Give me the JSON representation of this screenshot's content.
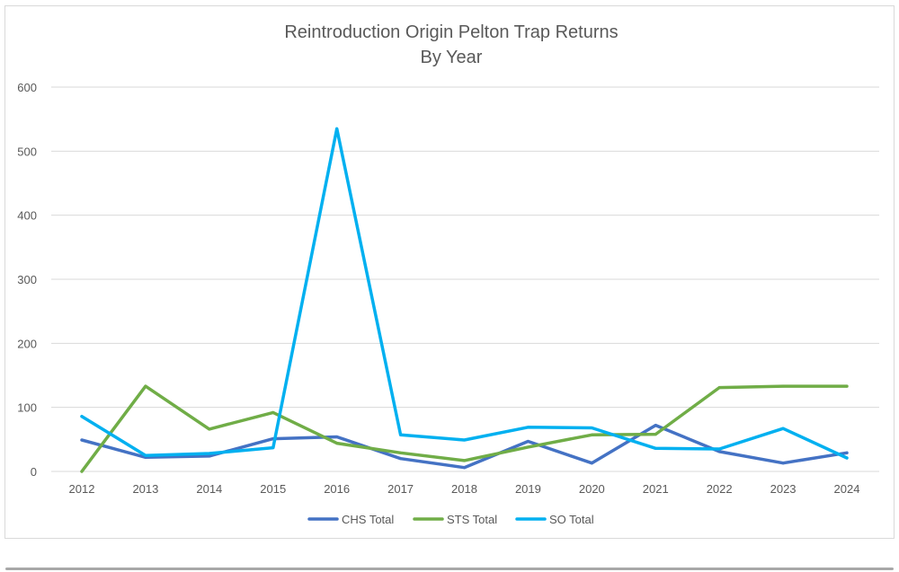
{
  "chart_data": {
    "type": "line",
    "title": "Reintroduction Origin Pelton Trap Returns",
    "subtitle": "By Year",
    "xlabel": "",
    "ylabel": "",
    "ylim": [
      0,
      600
    ],
    "yticks": [
      "0",
      "100",
      "200",
      "300",
      "400",
      "500",
      "600"
    ],
    "categories": [
      "2012",
      "2013",
      "2014",
      "2015",
      "2016",
      "2017",
      "2018",
      "2019",
      "2020",
      "2021",
      "2022",
      "2023",
      "2024"
    ],
    "grid": true,
    "legend_position": "bottom",
    "series": [
      {
        "name": "CHS Total",
        "color": "#4472c4",
        "values": [
          49,
          22,
          24,
          51,
          54,
          20,
          6,
          47,
          13,
          72,
          31,
          13,
          29
        ]
      },
      {
        "name": "STS Total",
        "color": "#70ad47",
        "values": [
          0,
          133,
          66,
          92,
          44,
          29,
          17,
          38,
          57,
          58,
          131,
          133,
          133
        ]
      },
      {
        "name": "SO Total",
        "color": "#00b0f0",
        "values": [
          86,
          25,
          28,
          37,
          535,
          57,
          49,
          69,
          68,
          36,
          35,
          67,
          21
        ]
      }
    ]
  }
}
